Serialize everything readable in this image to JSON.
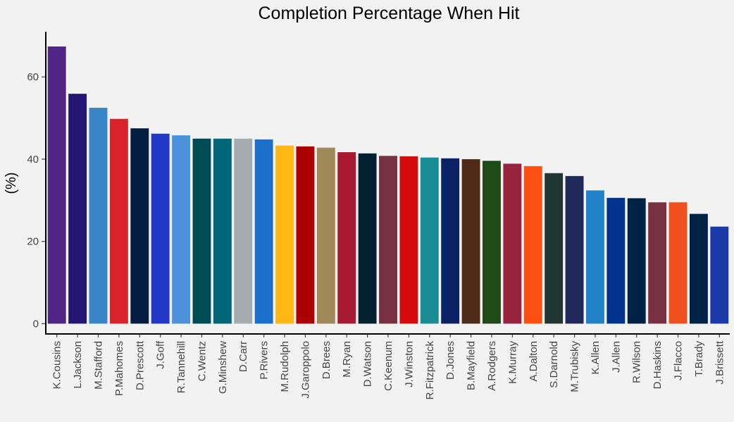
{
  "chart_data": {
    "type": "bar",
    "title": "Completion Percentage When Hit",
    "xlabel": "",
    "ylabel": "(%)",
    "ylim": [
      -2.5,
      71
    ],
    "yticks": [
      0,
      20,
      40,
      60
    ],
    "grid": false,
    "legend": "none",
    "categories": [
      "K.Cousins",
      "L.Jackson",
      "M.Stafford",
      "P.Mahomes",
      "D.Prescott",
      "J.Goff",
      "R.Tannehill",
      "C.Wentz",
      "G.Minshew",
      "D.Carr",
      "P.Rivers",
      "M.Rudolph",
      "J.Garoppolo",
      "D.Brees",
      "M.Ryan",
      "D.Watson",
      "C.Keenum",
      "J.Winston",
      "R.Fitzpatrick",
      "D.Jones",
      "B.Mayfield",
      "A.Rodgers",
      "K.Murray",
      "A.Dalton",
      "S.Darnold",
      "M.Trubisky",
      "K.Allen",
      "J.Allen",
      "R.Wilson",
      "D.Haskins",
      "J.Flacco",
      "T.Brady",
      "J.Brissett"
    ],
    "values": [
      67.4,
      55.9,
      52.5,
      49.8,
      47.5,
      46.2,
      45.8,
      45.0,
      45.0,
      45.0,
      44.8,
      43.3,
      43.1,
      42.8,
      41.7,
      41.4,
      40.8,
      40.7,
      40.4,
      40.2,
      40.0,
      39.6,
      38.9,
      38.3,
      36.6,
      35.9,
      32.4,
      30.6,
      30.5,
      29.5,
      29.5,
      26.7,
      23.6
    ],
    "colors": [
      "#4f2683",
      "#241773",
      "#3a84c8",
      "#d8232a",
      "#041e42",
      "#2438c8",
      "#4b92db",
      "#004c54",
      "#006778",
      "#a5acaf",
      "#1d6fcc",
      "#ffb612",
      "#aa0000",
      "#9f8958",
      "#a71930",
      "#03202f",
      "#773141",
      "#d50a0a",
      "#1a8c94",
      "#0b2265",
      "#4e2a17",
      "#1e4a16",
      "#97233f",
      "#fb4f14",
      "#203731",
      "#1f2a5a",
      "#1f82c9",
      "#00338d",
      "#002244",
      "#773141",
      "#f0501e",
      "#002244",
      "#1b3aa8"
    ]
  }
}
